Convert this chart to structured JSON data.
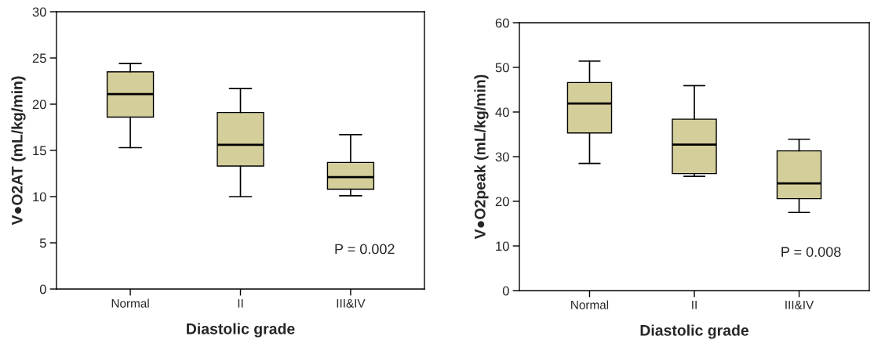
{
  "chart_data": [
    {
      "type": "box",
      "categories": [
        "Normal",
        "II",
        "III&IV"
      ],
      "xlabel": "Diastolic grade",
      "ylabel": "V●O2AT (mL/kg/min)",
      "ylim": [
        0,
        30
      ],
      "yticks": [
        0,
        5,
        10,
        15,
        20,
        25,
        30
      ],
      "grid": false,
      "legend": false,
      "series": [
        {
          "color": "#d4cf9a",
          "boxes": [
            {
              "low": 15.3,
              "q1": 18.6,
              "median": 21.1,
              "q3": 23.5,
              "high": 24.4
            },
            {
              "low": 10.0,
              "q1": 13.3,
              "median": 15.6,
              "q3": 19.1,
              "high": 21.7
            },
            {
              "low": 10.1,
              "q1": 10.8,
              "median": 12.1,
              "q3": 13.7,
              "high": 16.7
            }
          ]
        }
      ],
      "annotations": [
        "P = 0.002"
      ]
    },
    {
      "type": "box",
      "categories": [
        "Normal",
        "II",
        "III&IV"
      ],
      "xlabel": "Diastolic grade",
      "ylabel": "V●O2peak (mL/kg/min)",
      "ylim": [
        0,
        60
      ],
      "yticks": [
        0,
        10,
        20,
        30,
        40,
        50,
        60
      ],
      "grid": false,
      "legend": false,
      "series": [
        {
          "color": "#d4cf9a",
          "boxes": [
            {
              "low": 28.5,
              "q1": 35.3,
              "median": 41.9,
              "q3": 46.6,
              "high": 51.4
            },
            {
              "low": 25.6,
              "q1": 26.2,
              "median": 32.7,
              "q3": 38.4,
              "high": 45.9
            },
            {
              "low": 17.5,
              "q1": 20.6,
              "median": 24.0,
              "q3": 31.3,
              "high": 33.9
            }
          ]
        }
      ],
      "annotations": [
        "P = 0.008"
      ]
    }
  ]
}
